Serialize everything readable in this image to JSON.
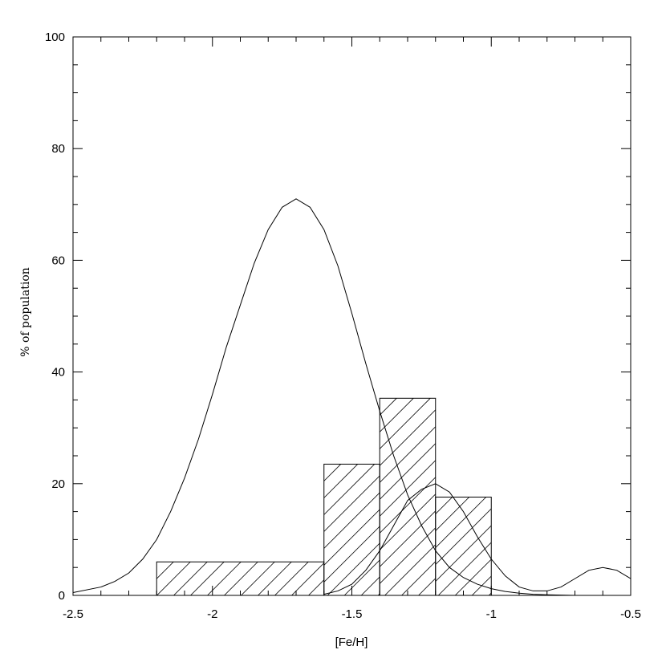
{
  "chart_data": {
    "type": "histogram",
    "xlabel": "[Fe/H]",
    "ylabel": "% of population",
    "xlim": [
      -2.5,
      -0.5
    ],
    "ylim": [
      0,
      100
    ],
    "x_ticks": [
      -2.5,
      -2.0,
      -1.5,
      -1.0,
      -0.5
    ],
    "x_tick_labels": [
      "-2.5",
      "-2",
      "-1.5",
      "-1",
      "-0.5"
    ],
    "y_ticks": [
      0,
      20,
      40,
      60,
      80,
      100
    ],
    "y_tick_labels": [
      "0",
      "20",
      "40",
      "60",
      "80",
      "100"
    ],
    "grid": false,
    "histogram": {
      "fill": "hatched",
      "bins": [
        {
          "x0": -2.2,
          "x1": -1.6,
          "value": 6
        },
        {
          "x0": -1.6,
          "x1": -1.4,
          "value": 23.5
        },
        {
          "x0": -1.4,
          "x1": -1.2,
          "value": 35.3
        },
        {
          "x0": -1.2,
          "x1": -1.0,
          "value": 17.6
        }
      ]
    },
    "curves": [
      {
        "x": [
          -2.5,
          -2.4,
          -2.35,
          -2.3,
          -2.25,
          -2.2,
          -2.15,
          -2.1,
          -2.05,
          -2.0,
          -1.95,
          -1.9,
          -1.85,
          -1.8,
          -1.75,
          -1.7,
          -1.65,
          -1.6,
          -1.55,
          -1.5,
          -1.45,
          -1.4,
          -1.35,
          -1.3,
          -1.25,
          -1.2,
          -1.15,
          -1.1,
          -1.05,
          -1.0,
          -0.95,
          -0.9,
          -0.85,
          -0.8,
          -0.75,
          -0.7
        ],
        "y": [
          0.5,
          1.5,
          2.5,
          4,
          6.5,
          10,
          15,
          21,
          28,
          36,
          44.5,
          52,
          59.5,
          65.5,
          69.5,
          71,
          69.5,
          65.5,
          59,
          50.5,
          41.5,
          33,
          25,
          18,
          12.5,
          8,
          5,
          3.2,
          2,
          1.2,
          0.7,
          0.4,
          0.2,
          0.1,
          0.05,
          0
        ]
      },
      {
        "x": [
          -1.6,
          -1.55,
          -1.5,
          -1.45,
          -1.4,
          -1.35,
          -1.3,
          -1.25,
          -1.2,
          -1.15,
          -1.1,
          -1.05,
          -1.0,
          -0.95,
          -0.9,
          -0.85,
          -0.8,
          -0.75,
          -0.7,
          -0.65,
          -0.6,
          -0.55,
          -0.5
        ],
        "y": [
          0.2,
          0.8,
          2,
          4.5,
          8,
          12.5,
          17,
          19,
          20,
          18.5,
          15,
          10.5,
          6.5,
          3.5,
          1.5,
          0.8,
          0.8,
          1.5,
          3,
          4.5,
          5,
          4.5,
          3
        ]
      }
    ]
  }
}
